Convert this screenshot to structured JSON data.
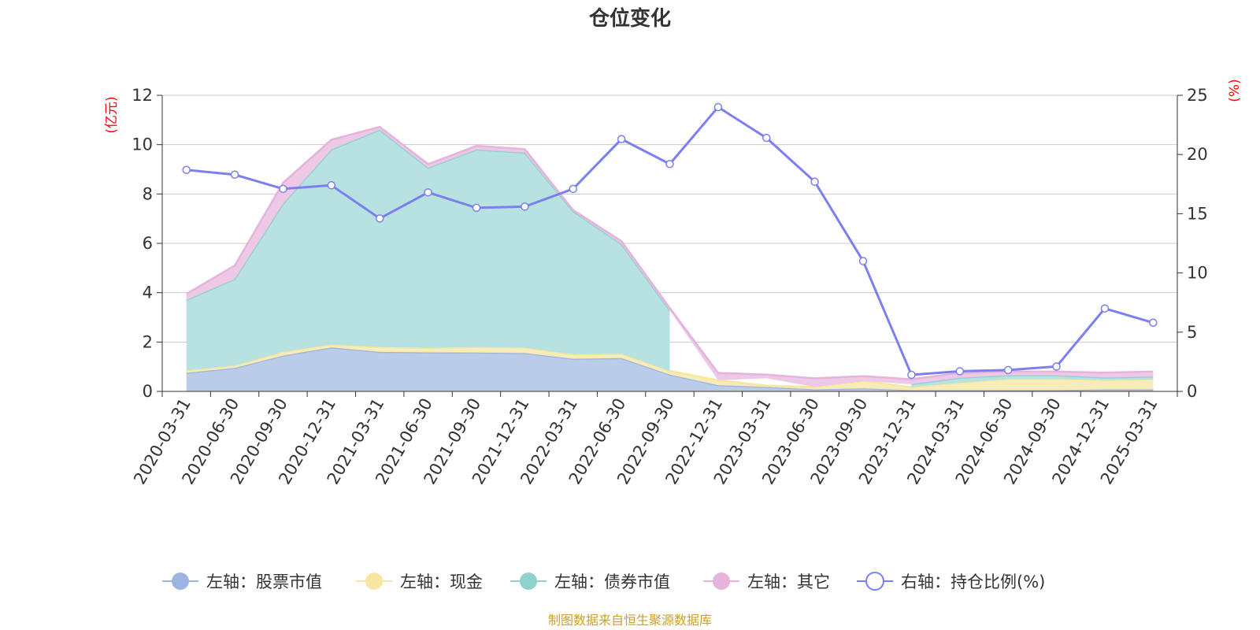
{
  "chart_data": {
    "type": "area",
    "title": "仓位变化",
    "left_axis": {
      "unit_label": "(亿元)",
      "ylim": [
        0,
        12
      ],
      "ticks": [
        "0",
        "2",
        "4",
        "6",
        "8",
        "10",
        "12"
      ]
    },
    "right_axis": {
      "unit_label": "(%)",
      "ylim": [
        0,
        25
      ],
      "ticks": [
        "0",
        "5",
        "10",
        "15",
        "20",
        "25"
      ]
    },
    "categories": [
      "2020-03-31",
      "2020-06-30",
      "2020-09-30",
      "2020-12-31",
      "2021-03-31",
      "2021-06-30",
      "2021-09-30",
      "2021-12-31",
      "2022-03-31",
      "2022-06-30",
      "2022-09-30",
      "2022-12-31",
      "2023-03-31",
      "2023-06-30",
      "2023-09-30",
      "2023-12-31",
      "2024-03-31",
      "2024-06-30",
      "2024-09-30",
      "2024-12-31",
      "2025-03-31"
    ],
    "series": [
      {
        "name": "左轴：股票市值",
        "axis": "left",
        "stack": true,
        "color": "#9bb5e0",
        "fill": "#b7c9e9",
        "values": [
          0.75,
          0.95,
          1.45,
          1.78,
          1.6,
          1.58,
          1.57,
          1.55,
          1.32,
          1.35,
          0.68,
          0.25,
          0.18,
          0.08,
          0.12,
          0.05,
          0.05,
          0.05,
          0.05,
          0.08,
          0.08
        ]
      },
      {
        "name": "左轴：现金",
        "axis": "left",
        "stack": true,
        "color": "#f6e6a1",
        "fill": "#f8ebb4",
        "values": [
          0.1,
          0.1,
          0.15,
          0.12,
          0.2,
          0.18,
          0.23,
          0.22,
          0.18,
          0.17,
          0.15,
          0.2,
          0.05,
          0.1,
          0.3,
          0.12,
          0.3,
          0.45,
          0.45,
          0.38,
          0.4
        ]
      },
      {
        "name": "左轴：债券市值",
        "axis": "left",
        "stack": true,
        "color": "#8fd1cf",
        "fill": "#b3e0df",
        "values": [
          2.85,
          3.5,
          6.0,
          7.9,
          8.8,
          7.3,
          8.0,
          7.9,
          5.8,
          4.45,
          2.45,
          null,
          0.3,
          null,
          null,
          0.12,
          0.2,
          0.15,
          0.15,
          0.1,
          0.12
        ]
      },
      {
        "name": "左轴：其它",
        "axis": "left",
        "stack": true,
        "color": "#e5b3dc",
        "fill": "#edc6e6",
        "values": [
          0.25,
          0.55,
          0.85,
          0.4,
          0.12,
          0.15,
          0.15,
          0.15,
          0.05,
          0.12,
          0.1,
          0.3,
          0.15,
          0.35,
          0.2,
          0.2,
          0.2,
          0.15,
          0.15,
          0.2,
          0.2
        ]
      },
      {
        "name": "右轴：持仓比例(%)",
        "axis": "right",
        "type": "line",
        "color": "#7b7ff0",
        "values": [
          18.7,
          18.3,
          17.1,
          17.4,
          14.6,
          16.8,
          15.5,
          15.6,
          17.1,
          21.3,
          19.2,
          24.0,
          21.4,
          17.7,
          11.0,
          1.4,
          1.7,
          1.8,
          2.1,
          7.0,
          5.8
        ]
      }
    ],
    "grid": true,
    "legend_position": "bottom"
  },
  "source": "制图数据来自恒生聚源数据库"
}
